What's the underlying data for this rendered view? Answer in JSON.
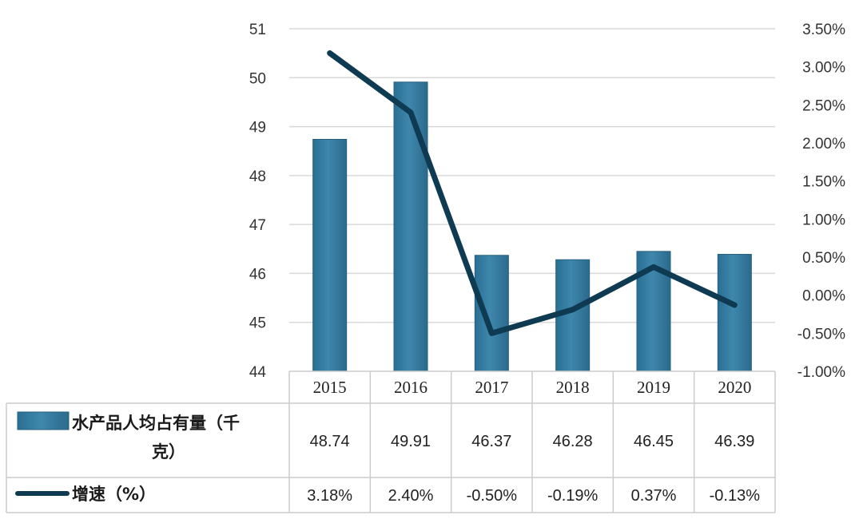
{
  "chart_data": {
    "type": "bar+line",
    "categories": [
      "2015",
      "2016",
      "2017",
      "2018",
      "2019",
      "2020"
    ],
    "series": [
      {
        "name": "水产品人均占有量（千克）",
        "legend_lines": [
          "水产品人均占有量（千",
          "克）"
        ],
        "type": "bar",
        "axis": "left",
        "values": [
          48.74,
          49.91,
          46.37,
          46.28,
          46.45,
          46.39
        ],
        "labels": [
          "48.74",
          "49.91",
          "46.37",
          "46.28",
          "46.45",
          "46.39"
        ],
        "color": "#3f87ad"
      },
      {
        "name": "增速（%）",
        "legend_lines": [
          "增速（%）"
        ],
        "type": "line",
        "axis": "right",
        "values": [
          3.18,
          2.4,
          -0.5,
          -0.19,
          0.37,
          -0.13
        ],
        "labels": [
          "3.18%",
          "2.40%",
          "-0.50%",
          "-0.19%",
          "0.37%",
          "-0.13%"
        ],
        "color": "#0e3a52"
      }
    ],
    "y_left": {
      "min": 44,
      "max": 51,
      "ticks": [
        "44",
        "45",
        "46",
        "47",
        "48",
        "49",
        "50",
        "51"
      ]
    },
    "y_right": {
      "min": -1.0,
      "max": 3.5,
      "ticks": [
        "-1.00%",
        "-0.50%",
        "0.00%",
        "0.50%",
        "1.00%",
        "1.50%",
        "2.00%",
        "2.50%",
        "3.00%",
        "3.50%"
      ]
    },
    "grid": true,
    "data_table": true
  }
}
